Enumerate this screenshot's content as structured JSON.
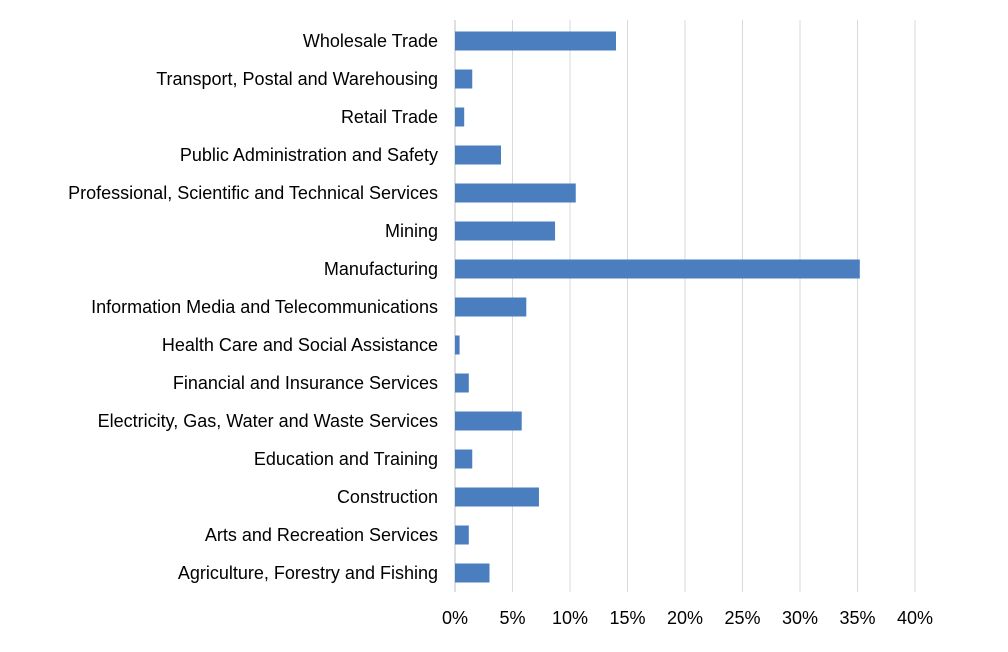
{
  "chart_data": {
    "type": "bar",
    "orientation": "horizontal",
    "title": "",
    "xlabel": "",
    "ylabel": "",
    "categories": [
      "Wholesale Trade",
      "Transport, Postal and Warehousing",
      "Retail Trade",
      "Public Administration and Safety",
      "Professional, Scientific and Technical Services",
      "Mining",
      "Manufacturing",
      "Information Media and Telecommunications",
      "Health Care and Social Assistance",
      "Financial and Insurance Services",
      "Electricity, Gas, Water and Waste Services",
      "Education and Training",
      "Construction",
      "Arts and Recreation Services",
      "Agriculture, Forestry and Fishing"
    ],
    "values": [
      14.0,
      1.5,
      0.8,
      4.0,
      10.5,
      8.7,
      35.2,
      6.2,
      0.4,
      1.2,
      5.8,
      1.5,
      7.3,
      1.2,
      3.0
    ],
    "value_unit": "%",
    "xlim": [
      0,
      40
    ],
    "xticks": [
      "0%",
      "5%",
      "10%",
      "15%",
      "20%",
      "25%",
      "30%",
      "35%",
      "40%"
    ],
    "grid": "vertical",
    "legend": "none",
    "bar_color": "#4a7ebf"
  }
}
